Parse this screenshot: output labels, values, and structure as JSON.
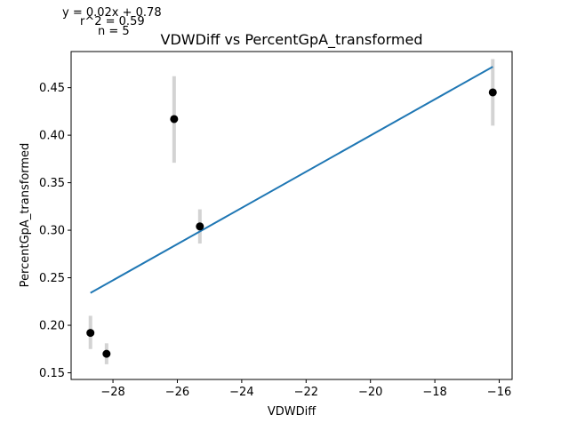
{
  "chart_data": {
    "type": "scatter",
    "title": "VDWDiff vs PercentGpA_transformed",
    "xlabel": "VDWDiff",
    "ylabel": "PercentGpA_transformed",
    "annotations": [
      "y = 0.02x + 0.78",
      "r^2 = 0.59",
      "n = 5"
    ],
    "xlim": [
      -29.3,
      -15.6
    ],
    "ylim": [
      0.143,
      0.488
    ],
    "x_ticks": [
      -28,
      -26,
      -24,
      -22,
      -20,
      -18,
      -16
    ],
    "x_tick_labels": [
      "−28",
      "−26",
      "−24",
      "−22",
      "−20",
      "−18",
      "−16"
    ],
    "y_ticks": [
      0.15,
      0.2,
      0.25,
      0.3,
      0.35,
      0.4,
      0.45
    ],
    "y_tick_labels": [
      "0.15",
      "0.20",
      "0.25",
      "0.30",
      "0.35",
      "0.40",
      "0.45"
    ],
    "points": [
      {
        "x": -28.7,
        "y": 0.192,
        "err_low": 0.175,
        "err_high": 0.21
      },
      {
        "x": -28.2,
        "y": 0.17,
        "err_low": 0.159,
        "err_high": 0.181
      },
      {
        "x": -26.1,
        "y": 0.417,
        "err_low": 0.371,
        "err_high": 0.462
      },
      {
        "x": -25.3,
        "y": 0.304,
        "err_low": 0.286,
        "err_high": 0.322
      },
      {
        "x": -16.2,
        "y": 0.445,
        "err_low": 0.41,
        "err_high": 0.48
      }
    ],
    "fit_line": {
      "x": [
        -28.7,
        -16.2
      ],
      "y": [
        0.234,
        0.472
      ]
    },
    "colors": {
      "points": "#000000",
      "fit_line": "#1f77b4",
      "error_bars": "#d3d3d3"
    },
    "grid": false,
    "legend": "none"
  }
}
